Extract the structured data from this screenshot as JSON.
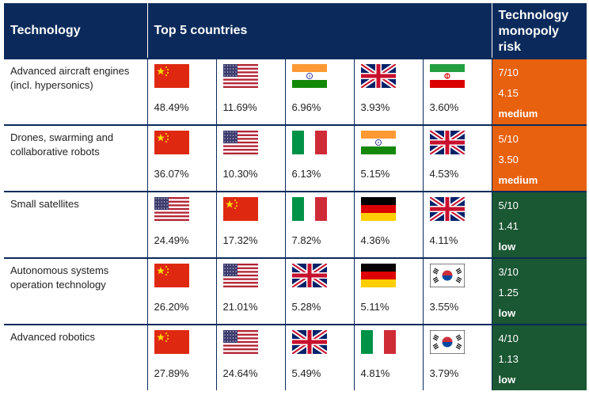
{
  "headers": {
    "technology": "Technology",
    "countries": "Top 5 countries",
    "risk_line1": "Technology",
    "risk_line2": "monopoly",
    "risk_line3": "risk"
  },
  "colors": {
    "header_bg": "#0b2a5b",
    "medium": "#e8610e",
    "low": "#1a5733"
  },
  "rows": [
    {
      "technology": "Advanced aircraft engines (incl. hypersonics)",
      "countries": [
        {
          "flag": "china-flag",
          "pct": "48.49%"
        },
        {
          "flag": "usa-flag",
          "pct": "11.69%"
        },
        {
          "flag": "india-flag",
          "pct": "6.96%"
        },
        {
          "flag": "uk-flag",
          "pct": "3.93%"
        },
        {
          "flag": "iran-flag",
          "pct": "3.60%"
        }
      ],
      "risk": {
        "score": "7/10",
        "value": "4.15",
        "level": "medium"
      }
    },
    {
      "technology": "Drones, swarming and collaborative robots",
      "countries": [
        {
          "flag": "china-flag",
          "pct": "36.07%"
        },
        {
          "flag": "usa-flag",
          "pct": "10.30%"
        },
        {
          "flag": "italy-flag",
          "pct": "6.13%"
        },
        {
          "flag": "india-flag",
          "pct": "5.15%"
        },
        {
          "flag": "uk-flag",
          "pct": "4.53%"
        }
      ],
      "risk": {
        "score": "5/10",
        "value": "3.50",
        "level": "medium"
      }
    },
    {
      "technology": "Small satellites",
      "countries": [
        {
          "flag": "usa-flag",
          "pct": "24.49%"
        },
        {
          "flag": "china-flag",
          "pct": "17.32%"
        },
        {
          "flag": "italy-flag",
          "pct": "7.82%"
        },
        {
          "flag": "germany-flag",
          "pct": "4.36%"
        },
        {
          "flag": "uk-flag",
          "pct": "4.11%"
        }
      ],
      "risk": {
        "score": "5/10",
        "value": "1.41",
        "level": "low"
      }
    },
    {
      "technology": "Autonomous systems operation technology",
      "countries": [
        {
          "flag": "china-flag",
          "pct": "26.20%"
        },
        {
          "flag": "usa-flag",
          "pct": "21.01%"
        },
        {
          "flag": "uk-flag",
          "pct": "5.28%"
        },
        {
          "flag": "germany-flag",
          "pct": "5.11%"
        },
        {
          "flag": "south-korea-flag",
          "pct": "3.55%"
        }
      ],
      "risk": {
        "score": "3/10",
        "value": "1.25",
        "level": "low"
      }
    },
    {
      "technology": "Advanced robotics",
      "countries": [
        {
          "flag": "china-flag",
          "pct": "27.89%"
        },
        {
          "flag": "usa-flag",
          "pct": "24.64%"
        },
        {
          "flag": "uk-flag",
          "pct": "5.49%"
        },
        {
          "flag": "italy-flag",
          "pct": "4.81%"
        },
        {
          "flag": "south-korea-flag",
          "pct": "3.79%"
        }
      ],
      "risk": {
        "score": "4/10",
        "value": "1.13",
        "level": "low"
      }
    }
  ]
}
